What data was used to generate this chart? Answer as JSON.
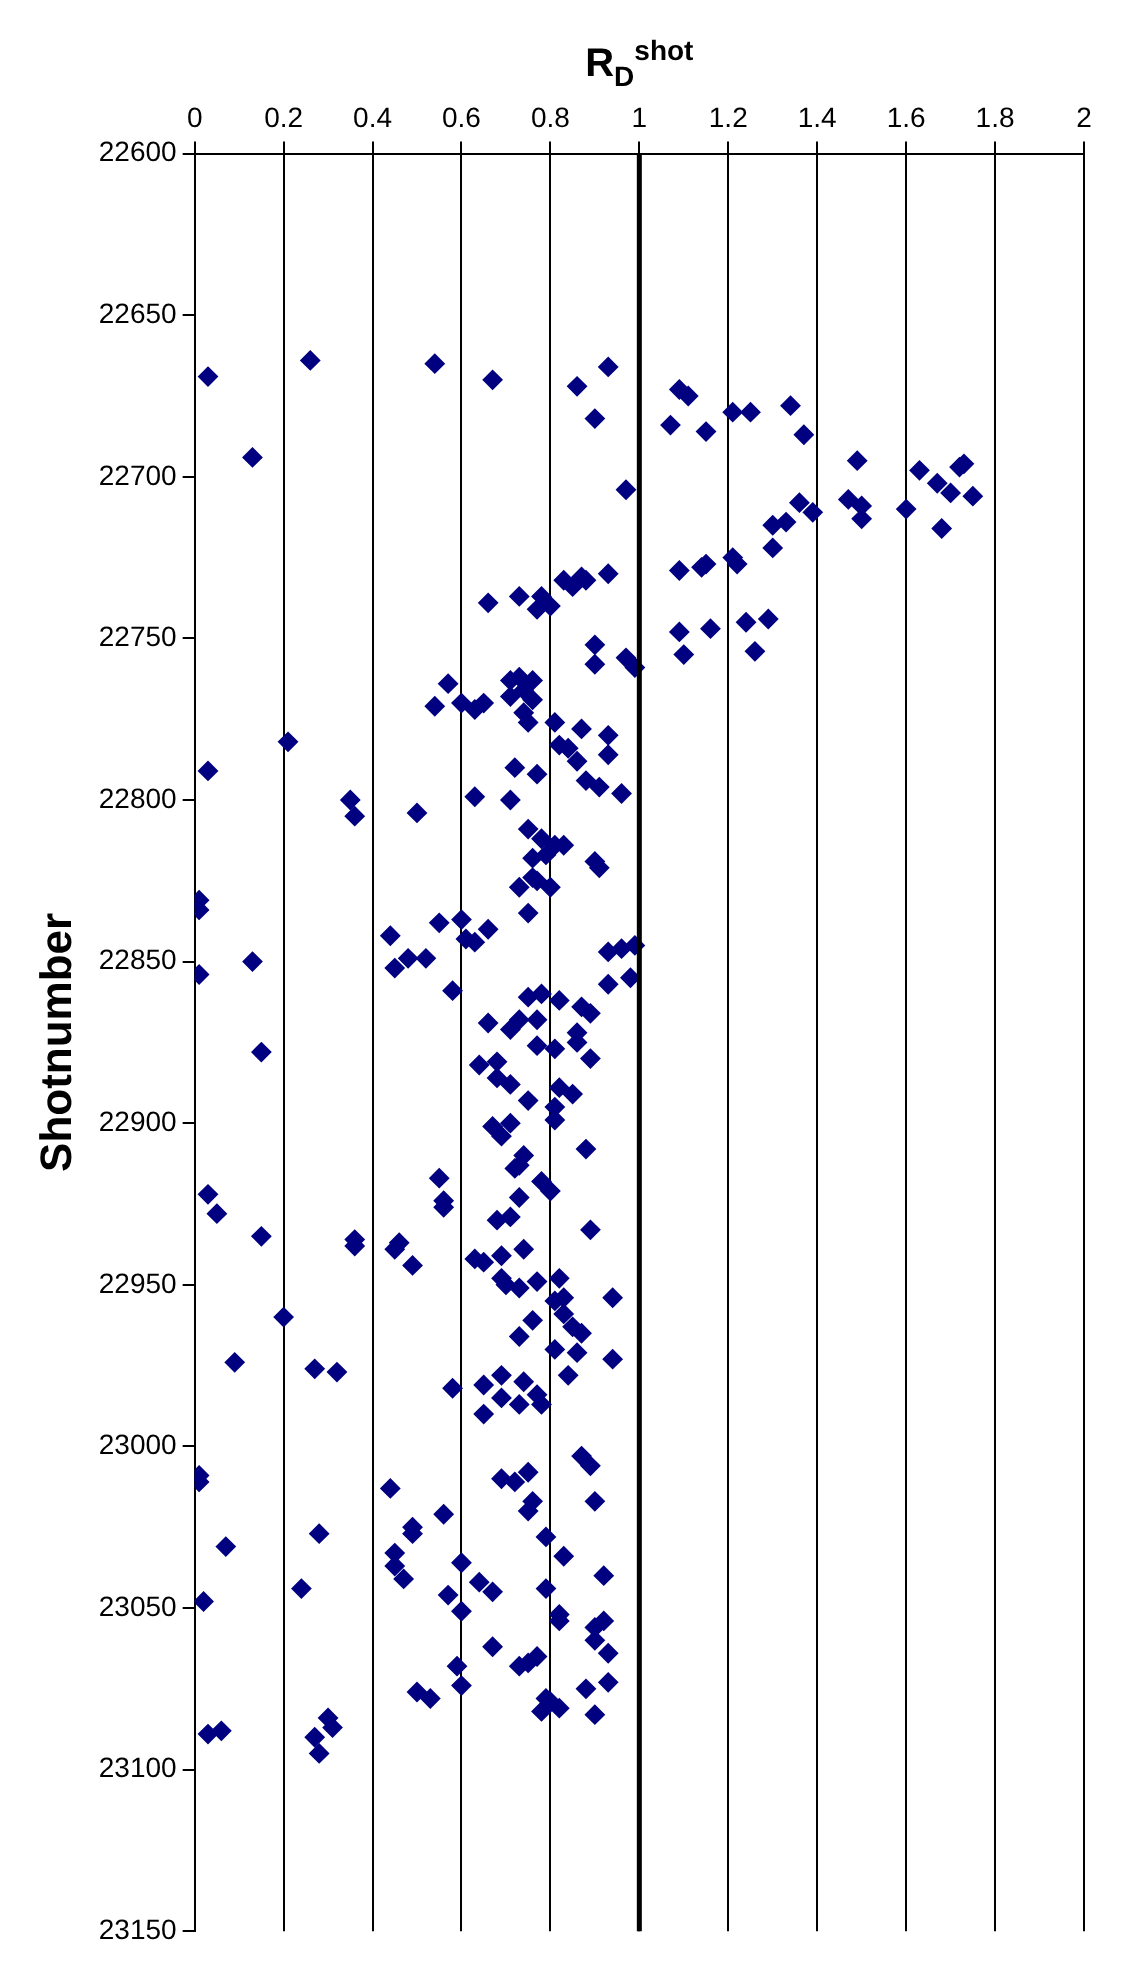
{
  "chart_data": {
    "type": "scatter",
    "xlabel": "R$_{D}$$^{shot}$",
    "ylabel": "Shotnumber",
    "ylim": [
      23150,
      22600
    ],
    "yticks": [
      22600,
      22650,
      22700,
      22750,
      22800,
      22850,
      22900,
      22950,
      23000,
      23050,
      23100,
      23150
    ],
    "xlim": [
      0,
      2
    ],
    "xticks": [
      0,
      0.2,
      0.4,
      0.6,
      0.8,
      1,
      1.2,
      1.4,
      1.6,
      1.8,
      2
    ],
    "grid": "x",
    "legend": false,
    "marker": "diamond",
    "ref_lines": [
      {
        "axis": "x",
        "value": 1,
        "color": "#000000"
      }
    ],
    "series": [
      {
        "color": "#000080",
        "values": [
          22669,
          22664,
          22694,
          22665,
          22670,
          22672,
          22666,
          22682,
          22704,
          22673,
          22675,
          22684,
          22686,
          22680,
          22680,
          22678,
          22687,
          22695,
          22698,
          22702,
          22705,
          22696,
          22697,
          22706,
          22716,
          22710,
          22707,
          22709,
          22713,
          22708,
          22711,
          22714,
          22715,
          22722,
          22725,
          22727,
          22728,
          22727,
          22729,
          22730,
          22731,
          22732,
          22734,
          22732,
          22739,
          22737,
          22737,
          22741,
          22740,
          22748,
          22747,
          22745,
          22744,
          22755,
          22754,
          22752,
          22758,
          22756,
          22759,
          22764,
          22771,
          22770,
          22772,
          22770,
          22763,
          22762,
          22763,
          22768,
          22766,
          22769,
          22773,
          22776,
          22776,
          22778,
          22780,
          22783,
          22784,
          22786,
          22788,
          22794,
          22796,
          22798,
          22790,
          22792,
          22799,
          22800,
          22782,
          22791,
          22800,
          22805,
          22804,
          22809,
          22812,
          22814,
          22814,
          22817,
          22818,
          22819,
          22821,
          22824,
          22827,
          22825,
          22827,
          22835,
          22831,
          22834,
          22850,
          22854,
          22842,
          22838,
          22837,
          22843,
          22844,
          22840,
          22852,
          22849,
          22849,
          22859,
          22847,
          22846,
          22845,
          22857,
          22855,
          22861,
          22860,
          22862,
          22864,
          22866,
          22869,
          22871,
          22868,
          22868,
          22872,
          22875,
          22876,
          22877,
          22878,
          22882,
          22881,
          22886,
          22888,
          22880,
          22893,
          22889,
          22891,
          22895,
          22899,
          22901,
          22904,
          22900,
          22908,
          22910,
          22913,
          22914,
          22918,
          22921,
          22923,
          22929,
          22930,
          22933,
          22917,
          22924,
          22926,
          22922,
          22928,
          22935,
          22936,
          22938,
          22937,
          22939,
          22944,
          22942,
          22943,
          22941,
          22939,
          22948,
          22950,
          22951,
          22949,
          22948,
          22955,
          22954,
          22954,
          22960,
          22959,
          22963,
          22965,
          22961,
          22966,
          22970,
          22971,
          22973,
          22978,
          22974,
          22976,
          22977,
          22982,
          22981,
          22978,
          22980,
          22985,
          22987,
          22984,
          22987,
          22990,
          23003,
          23006,
          23009,
          23011,
          23013,
          23010,
          23011,
          23008,
          23017,
          23020,
          23017,
          23021,
          23025,
          23027,
          23027,
          23028,
          23031,
          23033,
          23037,
          23041,
          23044,
          23048,
          23036,
          23042,
          23045,
          23046,
          23051,
          23034,
          23040,
          23044,
          23052,
          23054,
          23056,
          23054,
          23060,
          23064,
          23062,
          23068,
          23074,
          23068,
          23067,
          23065,
          23073,
          23075,
          23083,
          23078,
          23079,
          23082,
          23081,
          23076,
          23078,
          23089,
          23088,
          23090,
          23095,
          23084,
          23087
        ],
        "x": [
          0.03,
          0.26,
          0.13,
          0.54,
          0.67,
          0.86,
          0.93,
          0.9,
          0.97,
          1.09,
          1.11,
          1.07,
          1.15,
          1.21,
          1.25,
          1.34,
          1.37,
          1.49,
          1.63,
          1.67,
          1.7,
          1.73,
          1.72,
          1.75,
          1.68,
          1.6,
          1.47,
          1.5,
          1.5,
          1.36,
          1.39,
          1.33,
          1.3,
          1.3,
          1.21,
          1.22,
          1.14,
          1.15,
          1.09,
          0.93,
          0.87,
          0.83,
          0.85,
          0.88,
          0.66,
          0.73,
          0.78,
          0.77,
          0.8,
          1.09,
          1.16,
          1.24,
          1.29,
          1.1,
          1.26,
          0.9,
          0.9,
          0.97,
          0.99,
          0.57,
          0.54,
          0.6,
          0.63,
          0.65,
          0.71,
          0.73,
          0.76,
          0.71,
          0.74,
          0.76,
          0.74,
          0.75,
          0.81,
          0.87,
          0.93,
          0.82,
          0.84,
          0.93,
          0.86,
          0.88,
          0.91,
          0.96,
          0.72,
          0.77,
          0.63,
          0.71,
          0.21,
          0.03,
          0.35,
          0.36,
          0.5,
          0.75,
          0.78,
          0.81,
          0.83,
          0.79,
          0.76,
          0.9,
          0.91,
          0.76,
          0.73,
          0.77,
          0.8,
          0.75,
          0.01,
          0.01,
          0.13,
          0.01,
          0.44,
          0.55,
          0.6,
          0.61,
          0.63,
          0.66,
          0.45,
          0.48,
          0.52,
          0.58,
          0.93,
          0.96,
          0.99,
          0.93,
          0.98,
          0.75,
          0.78,
          0.82,
          0.87,
          0.89,
          0.66,
          0.71,
          0.73,
          0.77,
          0.86,
          0.86,
          0.77,
          0.81,
          0.15,
          0.64,
          0.68,
          0.68,
          0.71,
          0.89,
          0.75,
          0.82,
          0.85,
          0.81,
          0.81,
          0.67,
          0.69,
          0.71,
          0.88,
          0.74,
          0.73,
          0.72,
          0.78,
          0.8,
          0.73,
          0.71,
          0.68,
          0.89,
          0.55,
          0.56,
          0.56,
          0.03,
          0.05,
          0.15,
          0.36,
          0.36,
          0.46,
          0.45,
          0.49,
          0.63,
          0.65,
          0.69,
          0.74,
          0.69,
          0.7,
          0.73,
          0.77,
          0.82,
          0.81,
          0.83,
          0.94,
          0.2,
          0.83,
          0.85,
          0.87,
          0.76,
          0.73,
          0.81,
          0.86,
          0.94,
          0.84,
          0.09,
          0.27,
          0.32,
          0.58,
          0.65,
          0.69,
          0.74,
          0.69,
          0.73,
          0.77,
          0.78,
          0.65,
          0.87,
          0.89,
          0.01,
          0.01,
          0.44,
          0.69,
          0.72,
          0.75,
          0.76,
          0.75,
          0.9,
          0.56,
          0.49,
          0.49,
          0.28,
          0.79,
          0.07,
          0.45,
          0.45,
          0.47,
          0.24,
          0.02,
          0.6,
          0.64,
          0.67,
          0.57,
          0.6,
          0.83,
          0.92,
          0.79,
          0.82,
          0.82,
          0.9,
          0.92,
          0.9,
          0.93,
          0.67,
          0.59,
          0.6,
          0.73,
          0.75,
          0.77,
          0.93,
          0.88,
          0.9,
          0.79,
          0.8,
          0.78,
          0.82,
          0.5,
          0.53,
          0.03,
          0.06,
          0.27,
          0.28,
          0.3,
          0.31
        ]
      }
    ]
  }
}
